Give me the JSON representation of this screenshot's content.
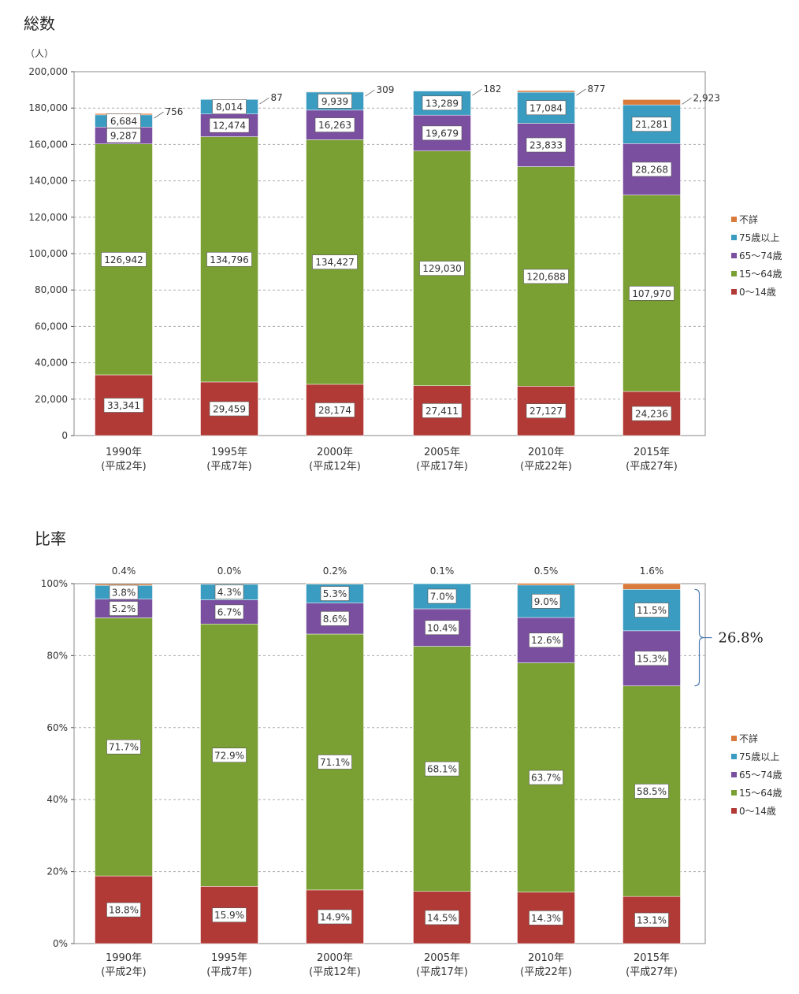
{
  "titles": {
    "total": "総数",
    "ratio": "比率"
  },
  "colors": {
    "0-14": "#b23a36",
    "15-64": "#7aa033",
    "65-74": "#7a4fa0",
    "75+": "#3a9cc0",
    "unknown": "#d9793a",
    "gridline": "#aaaaaa",
    "frame": "#888888"
  },
  "chart_data": [
    {
      "type": "bar",
      "stacked": true,
      "title": "総数",
      "ylabel": "（人）",
      "ylim": [
        0,
        200000
      ],
      "ticks": [
        "0",
        "20,000",
        "40,000",
        "60,000",
        "80,000",
        "100,000",
        "120,000",
        "140,000",
        "160,000",
        "180,000",
        "200,000"
      ],
      "tick_values": [
        0,
        20000,
        40000,
        60000,
        80000,
        100000,
        120000,
        140000,
        160000,
        180000,
        200000
      ],
      "categories": [
        [
          "1990年",
          "(平成2年)"
        ],
        [
          "1995年",
          "(平成7年)"
        ],
        [
          "2000年",
          "(平成12年)"
        ],
        [
          "2005年",
          "(平成17年)"
        ],
        [
          "2010年",
          "(平成22年)"
        ],
        [
          "2015年",
          "(平成27年)"
        ]
      ],
      "series": [
        {
          "name": "0〜14歳",
          "key": "0-14",
          "values": [
            33341,
            29459,
            28174,
            27411,
            27127,
            24236
          ],
          "labels": [
            "33,341",
            "29,459",
            "28,174",
            "27,411",
            "27,127",
            "24,236"
          ]
        },
        {
          "name": "15〜64歳",
          "key": "15-64",
          "values": [
            126942,
            134796,
            134427,
            129030,
            120688,
            107970
          ],
          "labels": [
            "126,942",
            "134,796",
            "134,427",
            "129,030",
            "120,688",
            "107,970"
          ]
        },
        {
          "name": "65〜74歳",
          "key": "65-74",
          "values": [
            9287,
            12474,
            16263,
            19679,
            23833,
            28268
          ],
          "labels": [
            "9,287",
            "12,474",
            "16,263",
            "19,679",
            "23,833",
            "28,268"
          ]
        },
        {
          "name": "75歳以上",
          "key": "75+",
          "values": [
            6684,
            8014,
            9939,
            13289,
            17084,
            21281
          ],
          "labels": [
            "6,684",
            "8,014",
            "9,939",
            "13,289",
            "17,084",
            "21,281"
          ]
        },
        {
          "name": "不詳",
          "key": "unknown",
          "values": [
            756,
            87,
            309,
            182,
            877,
            2923
          ],
          "labels": [
            "756",
            "87",
            "309",
            "182",
            "877",
            "2,923"
          ]
        }
      ],
      "legend": [
        "不詳",
        "75歳以上",
        "65〜74歳",
        "15〜64歳",
        "0〜14歳"
      ],
      "legend_position": "right",
      "grid": true
    },
    {
      "type": "bar",
      "stacked": true,
      "title": "比率",
      "ylim": [
        0,
        100
      ],
      "ticks": [
        "0%",
        "20%",
        "40%",
        "60%",
        "80%",
        "100%"
      ],
      "tick_values": [
        0,
        20,
        40,
        60,
        80,
        100
      ],
      "categories": [
        [
          "1990年",
          "(平成2年)"
        ],
        [
          "1995年",
          "(平成7年)"
        ],
        [
          "2000年",
          "(平成12年)"
        ],
        [
          "2005年",
          "(平成17年)"
        ],
        [
          "2010年",
          "(平成22年)"
        ],
        [
          "2015年",
          "(平成27年)"
        ]
      ],
      "series": [
        {
          "name": "0〜14歳",
          "key": "0-14",
          "values": [
            18.8,
            15.9,
            14.9,
            14.5,
            14.3,
            13.1
          ],
          "labels": [
            "18.8%",
            "15.9%",
            "14.9%",
            "14.5%",
            "14.3%",
            "13.1%"
          ]
        },
        {
          "name": "15〜64歳",
          "key": "15-64",
          "values": [
            71.7,
            72.9,
            71.1,
            68.1,
            63.7,
            58.5
          ],
          "labels": [
            "71.7%",
            "72.9%",
            "71.1%",
            "68.1%",
            "63.7%",
            "58.5%"
          ]
        },
        {
          "name": "65〜74歳",
          "key": "65-74",
          "values": [
            5.2,
            6.7,
            8.6,
            10.4,
            12.6,
            15.3
          ],
          "labels": [
            "5.2%",
            "6.7%",
            "8.6%",
            "10.4%",
            "12.6%",
            "15.3%"
          ]
        },
        {
          "name": "75歳以上",
          "key": "75+",
          "values": [
            3.8,
            4.3,
            5.3,
            7.0,
            9.0,
            11.5
          ],
          "labels": [
            "3.8%",
            "4.3%",
            "5.3%",
            "7.0%",
            "9.0%",
            "11.5%"
          ]
        },
        {
          "name": "不詳",
          "key": "unknown",
          "values": [
            0.4,
            0.0,
            0.2,
            0.1,
            0.5,
            1.6
          ],
          "labels": [
            "0.4%",
            "0.0%",
            "0.2%",
            "0.1%",
            "0.5%",
            "1.6%"
          ]
        }
      ],
      "legend": [
        "不詳",
        "75歳以上",
        "65〜74歳",
        "15〜64歳",
        "0〜14歳"
      ],
      "legend_position": "right",
      "grid": true,
      "annotation": "26.8%"
    }
  ]
}
